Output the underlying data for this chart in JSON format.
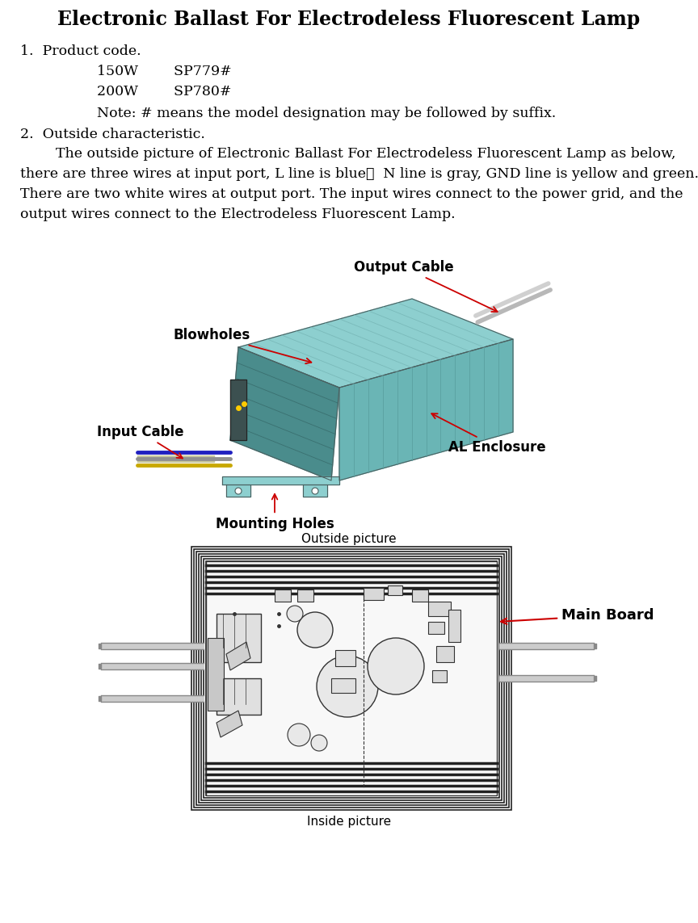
{
  "title": "Electronic Ballast For Electrodeless Fluorescent Lamp",
  "title_fontsize": 17,
  "body_fontsize": 12.5,
  "small_fontsize": 11,
  "bg_color": "#ffffff",
  "text_color": "#000000",
  "section1_header": "1.  Product code.",
  "s1_line1": "150W        SP779#",
  "s1_line2": "200W        SP780#",
  "s1_note": "Note: # means the model designation may be followed by suffix.",
  "section2_header": "2.  Outside characteristic.",
  "s2_line1": "        The outside picture of Electronic Ballast For Electrodeless Fluorescent Lamp as below,",
  "s2_line2": "there are three wires at input port, L line is blue，  N line is gray, GND line is yellow and green.",
  "s2_line3": "There are two white wires at output port. The input wires connect to the power grid, and the",
  "s2_line4": "output wires connect to the Electrodeless Fluorescent Lamp.",
  "outside_caption": "Outside picture",
  "inside_caption": "Inside picture",
  "lbl_output_cable": "Output Cable",
  "lbl_blowholes": "Blowholes",
  "lbl_input_cable": "Input Cable",
  "lbl_al_enclosure": "AL Enclosure",
  "lbl_mounting_holes": "Mounting Holes",
  "lbl_main_board": "Main Board",
  "teal_top": "#8dcfcf",
  "teal_side": "#6ab5b5",
  "teal_front": "#4a8c8c",
  "arrow_color": "#cc0000"
}
